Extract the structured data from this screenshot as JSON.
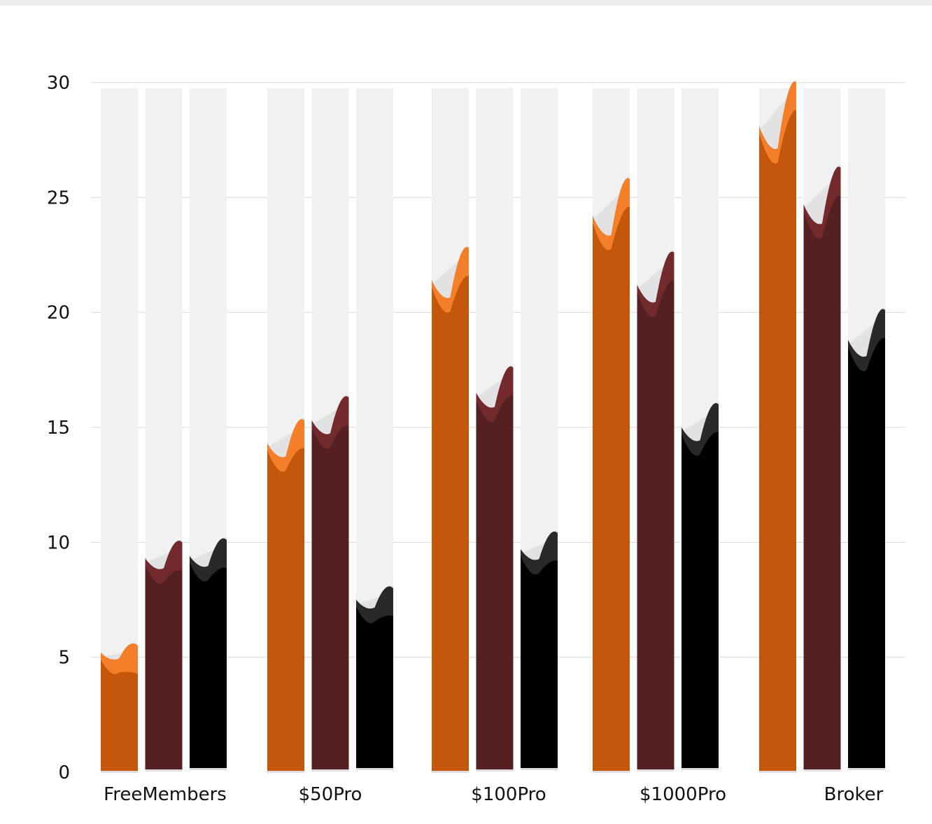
{
  "chart_data": {
    "type": "bar",
    "categories": [
      "FreeMembers",
      "$50Pro",
      "$100Pro",
      "$1000Pro",
      "Broker"
    ],
    "series": [
      {
        "color": "#c5570c",
        "highlight": "#f47f2a",
        "values": [
          5.2,
          14.3,
          21.4,
          24.2,
          28.1
        ],
        "end_values": [
          5.5,
          15.3,
          22.8,
          25.8,
          30.0
        ]
      },
      {
        "color": "#552022",
        "highlight": "#722a2d",
        "values": [
          9.3,
          15.3,
          16.5,
          21.2,
          24.7
        ],
        "end_values": [
          10.0,
          16.3,
          17.6,
          22.6,
          26.3
        ]
      },
      {
        "color": "#000000",
        "highlight": "#292929",
        "values": [
          9.4,
          7.5,
          9.7,
          15.0,
          18.8
        ],
        "end_values": [
          10.1,
          8.0,
          10.4,
          16.0,
          20.1
        ]
      }
    ],
    "ylim": [
      0,
      30
    ],
    "yticks": [
      0,
      5,
      10,
      15,
      20,
      25,
      30
    ],
    "grid": true,
    "legend": "none",
    "background_color": "#f1f1f1"
  }
}
